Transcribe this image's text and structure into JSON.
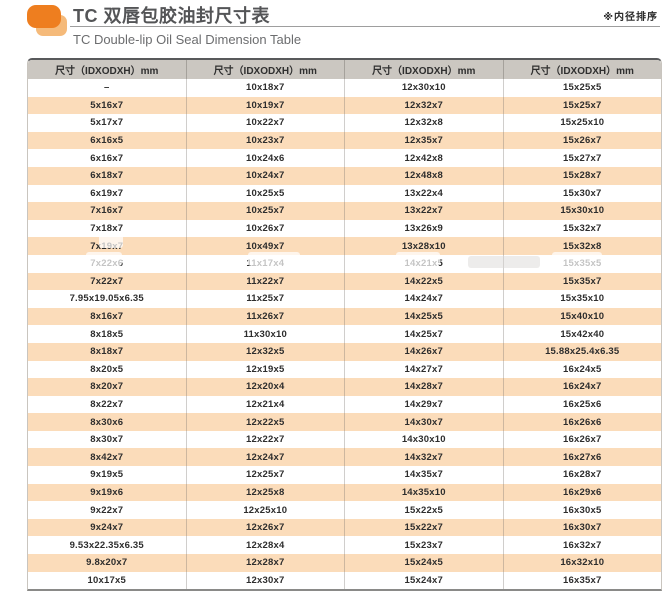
{
  "page": {
    "title_zh": "TC 双唇包胶油封尺寸表",
    "title_en": "TC Double-lip Oil Seal Dimension Table",
    "note": "※内径排序"
  },
  "colors": {
    "accent_orange": "#ee7e1f",
    "accent_orange_light": "#f3ae63",
    "stripe_peach": "#fbdcba",
    "header_gray": "#cbc7c1",
    "text_dark": "#2d2d2d"
  },
  "table": {
    "header": "尺寸（IDXODXH）mm",
    "columns_count": 4,
    "rows": [
      [
        "–",
        "10x18x7",
        "12x30x10",
        "15x25x5"
      ],
      [
        "5x16x7",
        "10x19x7",
        "12x32x7",
        "15x25x7"
      ],
      [
        "5x17x7",
        "10x22x7",
        "12x32x8",
        "15x25x10"
      ],
      [
        "6x16x5",
        "10x23x7",
        "12x35x7",
        "15x26x7"
      ],
      [
        "6x16x7",
        "10x24x6",
        "12x42x8",
        "15x27x7"
      ],
      [
        "6x18x7",
        "10x24x7",
        "12x48x8",
        "15x28x7"
      ],
      [
        "6x19x7",
        "10x25x5",
        "13x22x4",
        "15x30x7"
      ],
      [
        "7x16x7",
        "10x25x7",
        "13x22x7",
        "15x30x10"
      ],
      [
        "7x18x7",
        "10x26x7",
        "13x26x9",
        "15x32x7"
      ],
      [
        "7x19x7",
        "10x49x7",
        "13x28x10",
        "15x32x8"
      ],
      [
        "7x22x6",
        "11x17x4",
        "14x21x5",
        "15x35x5"
      ],
      [
        "7x22x7",
        "11x22x7",
        "14x22x5",
        "15x35x7"
      ],
      [
        "7.95x19.05x6.35",
        "11x25x7",
        "14x24x7",
        "15x35x10"
      ],
      [
        "8x16x7",
        "11x26x7",
        "14x25x5",
        "15x40x10"
      ],
      [
        "8x18x5",
        "11x30x10",
        "14x25x7",
        "15x42x40"
      ],
      [
        "8x18x7",
        "12x32x5",
        "14x26x7",
        "15.88x25.4x6.35"
      ],
      [
        "8x20x5",
        "12x19x5",
        "14x27x7",
        "16x24x5"
      ],
      [
        "8x20x7",
        "12x20x4",
        "14x28x7",
        "16x24x7"
      ],
      [
        "8x22x7",
        "12x21x4",
        "14x29x7",
        "16x25x6"
      ],
      [
        "8x30x6",
        "12x22x5",
        "14x30x7",
        "16x26x6"
      ],
      [
        "8x30x7",
        "12x22x7",
        "14x30x10",
        "16x26x7"
      ],
      [
        "8x42x7",
        "12x24x7",
        "14x32x7",
        "16x27x6"
      ],
      [
        "9x19x5",
        "12x25x7",
        "14x35x7",
        "16x28x7"
      ],
      [
        "9x19x6",
        "12x25x8",
        "14x35x10",
        "16x29x6"
      ],
      [
        "9x22x7",
        "12x25x10",
        "15x22x5",
        "16x30x5"
      ],
      [
        "9x24x7",
        "12x26x7",
        "15x22x7",
        "16x30x7"
      ],
      [
        "9.53x22.35x6.35",
        "12x28x4",
        "15x23x7",
        "16x32x7"
      ],
      [
        "9.8x20x7",
        "12x28x7",
        "15x24x5",
        "16x32x10"
      ],
      [
        "10x17x5",
        "12x30x7",
        "15x24x7",
        "16x35x7"
      ]
    ]
  }
}
